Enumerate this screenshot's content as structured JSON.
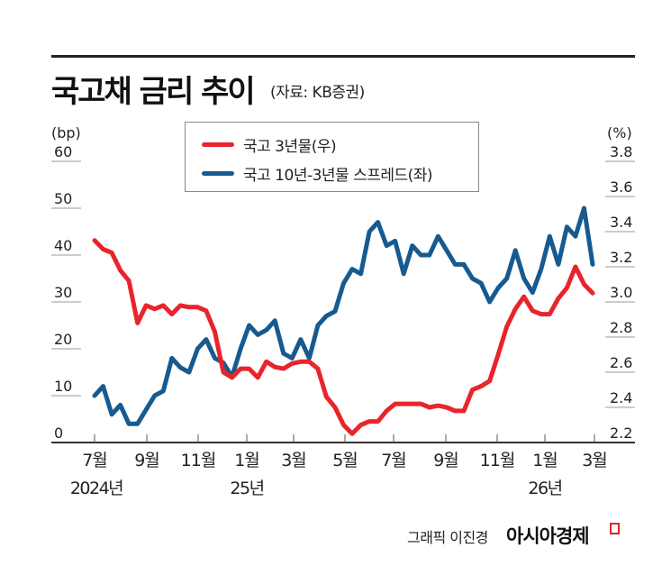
{
  "header": {
    "title": "국고채 금리 추이",
    "source": "(자료: KB증권)"
  },
  "legend": {
    "items": [
      {
        "label": "국고 3년물(우)",
        "color": "#e8242c"
      },
      {
        "label": "국고 10년-3년물 스프레드(좌)",
        "color": "#175a8f"
      }
    ]
  },
  "axes": {
    "left_unit": "(bp)",
    "right_unit": "(%)",
    "left_ticks": [
      "60",
      "50",
      "40",
      "30",
      "20",
      "10",
      "0"
    ],
    "right_ticks": [
      "3.8",
      "3.6",
      "3.4",
      "3.2",
      "3.0",
      "2.8",
      "2.6",
      "2.4",
      "2.2"
    ],
    "x_months": [
      "7월",
      "9월",
      "11월",
      "1월",
      "3월",
      "5월",
      "7월",
      "9월",
      "11월",
      "1월",
      "3월"
    ],
    "x_years": [
      "2024년",
      "25년",
      "26년"
    ]
  },
  "footer": {
    "credit": "그래픽 이진경",
    "brand": "아시아경제"
  },
  "chart_data": {
    "type": "line",
    "title": "국고채 금리 추이",
    "subtitle": "(자료: KB증권)",
    "xlabel": "",
    "ylabel_left": "bp",
    "ylabel_right": "%",
    "ylim_left": [
      0,
      60
    ],
    "ylim_right": [
      2.2,
      3.8
    ],
    "legend_position": "top-center",
    "grid": false,
    "x_ticks": [
      "2024-07",
      "2024-09",
      "2024-11",
      "2025-01",
      "2025-03",
      "2025-05",
      "2025-07",
      "2025-09",
      "2025-11",
      "2026-01",
      "2026-03"
    ],
    "series": [
      {
        "name": "국고 3년물(우)",
        "axis": "right",
        "color": "#e8242c",
        "x": [
          "2024-07",
          "2024-07",
          "2024-08",
          "2024-08",
          "2024-08",
          "2024-08",
          "2024-09",
          "2024-09",
          "2024-09",
          "2024-10",
          "2024-10",
          "2024-10",
          "2024-11",
          "2024-11",
          "2024-11",
          "2024-12",
          "2024-12",
          "2025-01",
          "2025-01",
          "2025-01",
          "2025-02",
          "2025-02",
          "2025-02",
          "2025-03",
          "2025-03",
          "2025-03",
          "2025-04",
          "2025-04",
          "2025-04",
          "2025-05",
          "2025-05",
          "2025-05",
          "2025-06",
          "2025-06",
          "2025-06",
          "2025-07",
          "2025-07",
          "2025-07",
          "2025-08",
          "2025-08",
          "2025-08",
          "2025-09",
          "2025-09",
          "2025-09",
          "2025-10",
          "2025-10",
          "2025-10",
          "2025-11",
          "2025-11",
          "2025-11",
          "2025-12",
          "2025-12",
          "2026-01",
          "2026-01",
          "2026-01",
          "2026-02",
          "2026-02",
          "2026-02",
          "2026-03"
        ],
        "values": [
          3.35,
          3.3,
          3.28,
          3.18,
          3.12,
          2.88,
          2.98,
          2.96,
          2.98,
          2.93,
          2.98,
          2.97,
          2.97,
          2.95,
          2.83,
          2.6,
          2.57,
          2.62,
          2.62,
          2.57,
          2.66,
          2.63,
          2.62,
          2.65,
          2.66,
          2.66,
          2.62,
          2.46,
          2.4,
          2.3,
          2.25,
          2.3,
          2.32,
          2.32,
          2.38,
          2.42,
          2.42,
          2.42,
          2.42,
          2.4,
          2.41,
          2.4,
          2.38,
          2.38,
          2.5,
          2.52,
          2.55,
          2.7,
          2.86,
          2.96,
          3.03,
          2.95,
          2.93,
          2.93,
          3.02,
          3.08,
          3.2,
          3.1,
          3.05
        ]
      },
      {
        "name": "국고 10년-3년물 스프레드(좌)",
        "axis": "left",
        "color": "#175a8f",
        "x": [
          "2024-07",
          "2024-07",
          "2024-08",
          "2024-08",
          "2024-08",
          "2024-08",
          "2024-09",
          "2024-09",
          "2024-09",
          "2024-10",
          "2024-10",
          "2024-10",
          "2024-11",
          "2024-11",
          "2024-11",
          "2024-12",
          "2024-12",
          "2025-01",
          "2025-01",
          "2025-01",
          "2025-02",
          "2025-02",
          "2025-02",
          "2025-03",
          "2025-03",
          "2025-03",
          "2025-04",
          "2025-04",
          "2025-04",
          "2025-05",
          "2025-05",
          "2025-05",
          "2025-06",
          "2025-06",
          "2025-06",
          "2025-07",
          "2025-07",
          "2025-07",
          "2025-08",
          "2025-08",
          "2025-08",
          "2025-09",
          "2025-09",
          "2025-09",
          "2025-10",
          "2025-10",
          "2025-10",
          "2025-11",
          "2025-11",
          "2025-11",
          "2025-12",
          "2025-12",
          "2026-01",
          "2026-01",
          "2026-01",
          "2026-02",
          "2026-02",
          "2026-02",
          "2026-03"
        ],
        "values": [
          10,
          12,
          6,
          8,
          4,
          4,
          7,
          10,
          11,
          18,
          16,
          15,
          20,
          22,
          18,
          17,
          14,
          20,
          25,
          23,
          24,
          26,
          19,
          18,
          22,
          18,
          25,
          27,
          28,
          34,
          37,
          36,
          45,
          47,
          42,
          43,
          36,
          42,
          40,
          40,
          44,
          41,
          38,
          38,
          35,
          34,
          30,
          33,
          35,
          41,
          35,
          32,
          37,
          44,
          38,
          46,
          44,
          50,
          38
        ]
      }
    ]
  }
}
